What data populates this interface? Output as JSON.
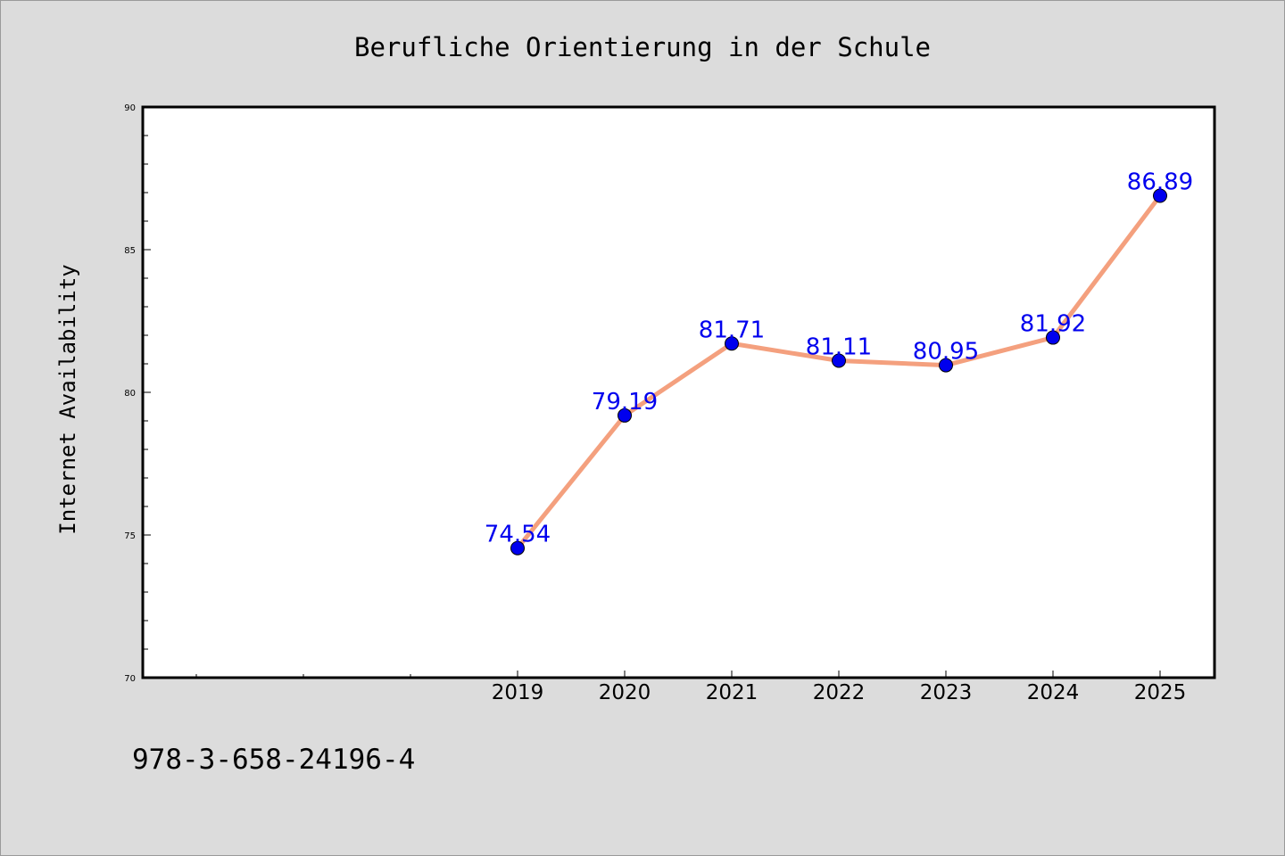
{
  "chart_data": {
    "type": "line",
    "title": "Berufliche Orientierung in der Schule",
    "xlabel": "",
    "ylabel": "Internet Availability",
    "categories": [
      "2019",
      "2020",
      "2021",
      "2022",
      "2023",
      "2024",
      "2025"
    ],
    "series": [
      {
        "values": [
          74.54,
          79.19,
          81.71,
          81.11,
          80.95,
          81.92,
          86.89
        ],
        "data_labels": [
          "74.54",
          "79.19",
          "81.71",
          "81.11",
          "80.95",
          "81.92",
          "86.89"
        ],
        "line_color": "#f4a07e",
        "marker_color": "#0000ee",
        "label_color": "#0000ee"
      }
    ],
    "ylim": [
      70,
      90
    ],
    "y_ticks": [
      70,
      75,
      80,
      85,
      90
    ],
    "y_tick_labels": [
      "70",
      "75",
      "80",
      "85",
      "90"
    ],
    "grid": false,
    "legend": "none"
  },
  "footer": {
    "code": "978-3-658-24196-4"
  },
  "colors": {
    "background": "#dcdcdc",
    "plot_area": "#ffffff",
    "axis": "#000000"
  }
}
